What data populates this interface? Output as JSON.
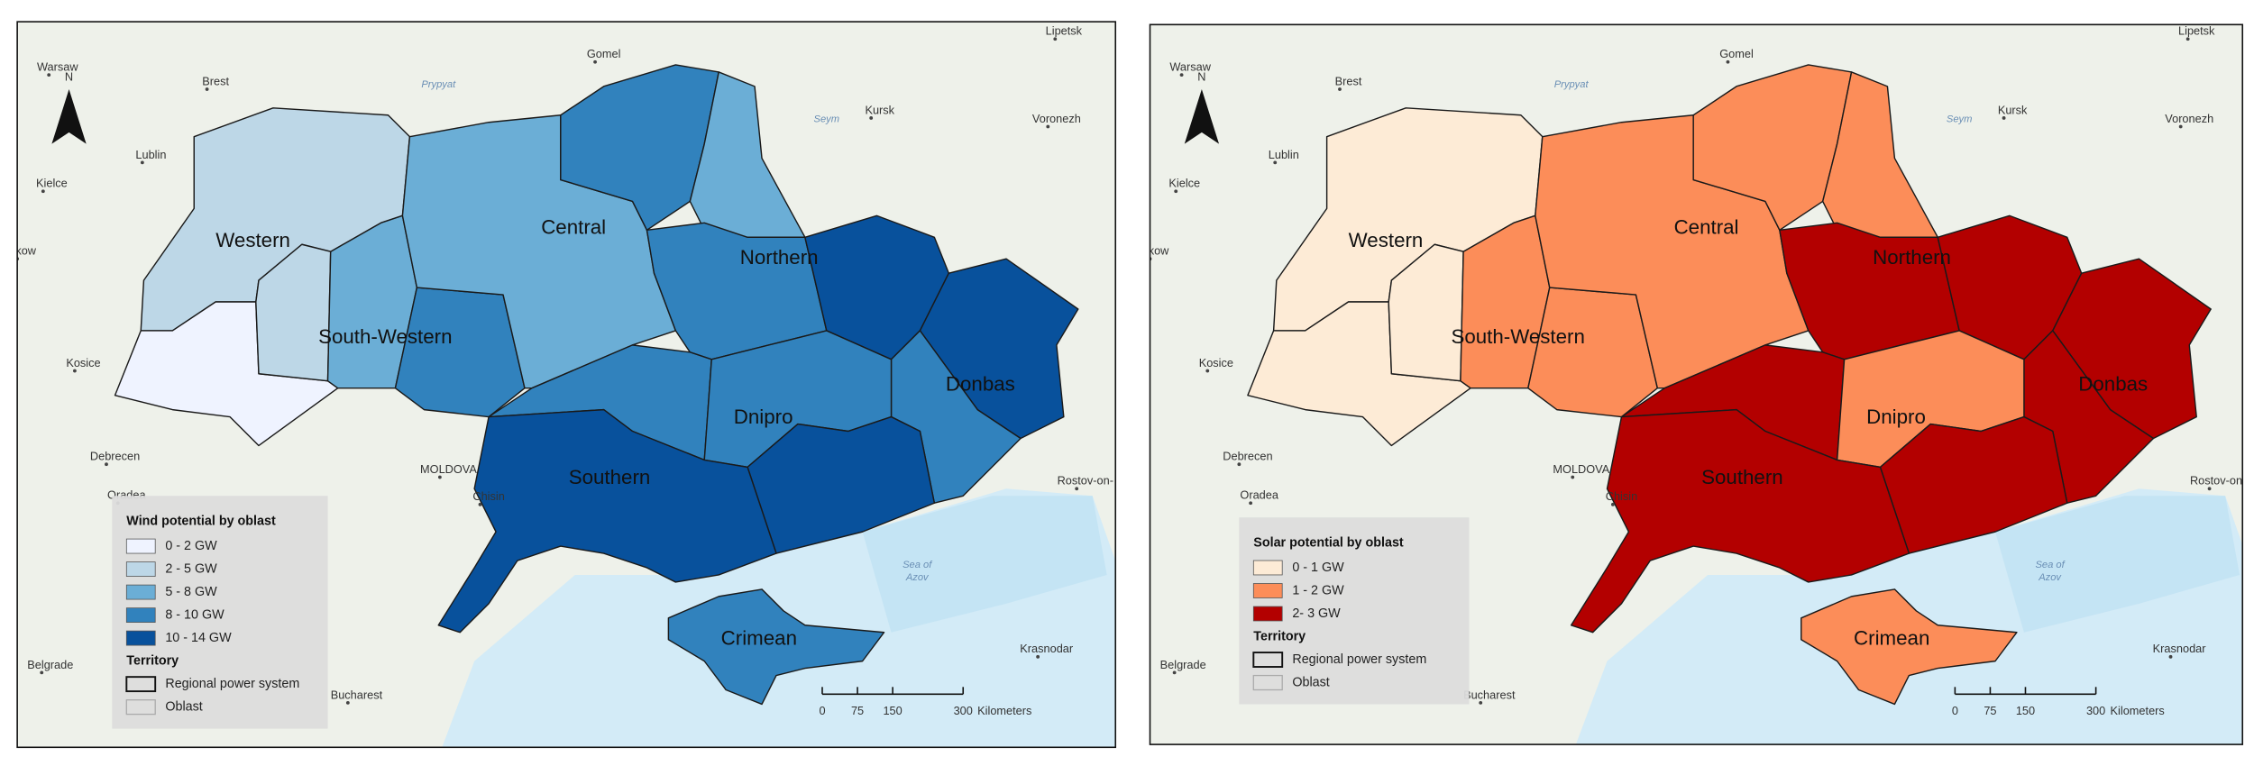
{
  "maps": [
    {
      "legend": {
        "title": "Wind potential by oblast",
        "classes": [
          {
            "label": "0 - 2 GW",
            "color": "#eff3ff"
          },
          {
            "label": "2 - 5 GW",
            "color": "#bdd7e7"
          },
          {
            "label": "5 - 8 GW",
            "color": "#6baed6"
          },
          {
            "label": "8 - 10 GW",
            "color": "#3182bd"
          },
          {
            "label": "10 - 14 GW",
            "color": "#08519c"
          }
        ],
        "territory": "Territory",
        "items": [
          "Regional power system",
          "Oblast"
        ]
      },
      "oblast_classes": [
        "2 - 5 GW",
        "0 - 2 GW",
        "2 - 5 GW",
        "5 - 8 GW",
        "8 - 10 GW",
        "5 - 8 GW",
        "8 - 10 GW",
        "5 - 8 GW",
        "8 - 10 GW",
        "10 - 14 GW",
        "10 - 14 GW",
        "8 - 10 GW",
        "8 - 10 GW",
        "8 - 10 GW",
        "10 - 14 GW",
        "10 - 14 GW",
        "8 - 10 GW"
      ]
    },
    {
      "legend": {
        "title": "Solar potential by oblast",
        "classes": [
          {
            "label": "0 - 1 GW",
            "color": "#fdebd6"
          },
          {
            "label": "1 - 2 GW",
            "color": "#fc8d59"
          },
          {
            "label": "2- 3 GW",
            "color": "#b30000"
          }
        ],
        "territory": "Territory",
        "items": [
          "Regional power system",
          "Oblast"
        ]
      },
      "oblast_classes": [
        "0 - 1 GW",
        "0 - 1 GW",
        "0 - 1 GW",
        "1 - 2 GW",
        "1 - 2 GW",
        "1 - 2 GW",
        "1 - 2 GW",
        "1 - 2 GW",
        "2- 3 GW",
        "2- 3 GW",
        "2- 3 GW",
        "2- 3 GW",
        "2- 3 GW",
        "1 - 2 GW",
        "2- 3 GW",
        "2- 3 GW",
        "1 - 2 GW"
      ]
    }
  ],
  "regions": [
    "Western",
    "South-Western",
    "Central",
    "Northern",
    "Donbas",
    "Dnipro",
    "Southern",
    "Crimean"
  ],
  "places": [
    "Warsaw",
    "Brest",
    "Gomel",
    "Lipetsk",
    "Lublin",
    "Kursk",
    "Voronezh",
    "Kielce",
    "kow",
    "Kosice",
    "Debrecen",
    "Oradea",
    "Chisin",
    "Rostov-on-",
    "Krasnodar",
    "Bucharest",
    "Belgrade",
    "MOLDOVA"
  ],
  "water": [
    "Prypyat",
    "Seym",
    "Sea of",
    "Azov"
  ],
  "north": "N",
  "scale_bar": {
    "ticks": [
      0,
      75,
      150,
      300
    ],
    "unit": "Kilometers"
  }
}
